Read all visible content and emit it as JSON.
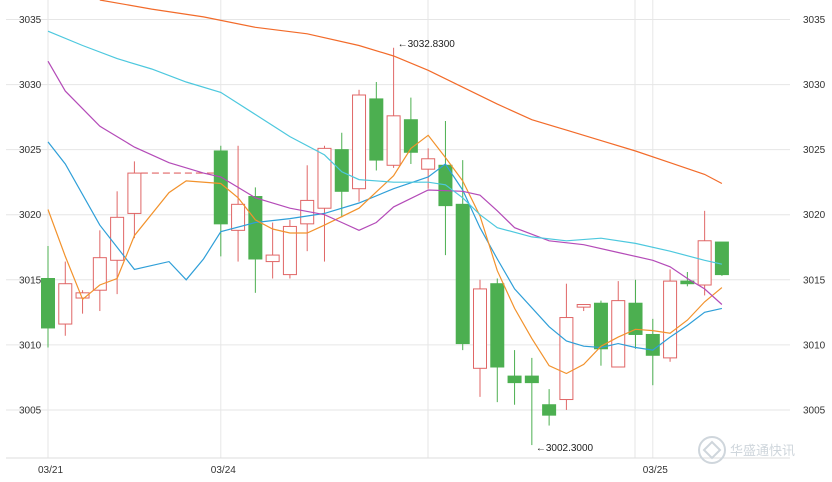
{
  "chart_data": {
    "type": "candlestick",
    "grid": true,
    "colors": {
      "up": "#e06666",
      "down": "#4caf50",
      "ma5": "#2f9fd8",
      "ma10": "#f2922c",
      "ma20": "#b44bb8",
      "ma30": "#4dc8de",
      "ma60": "#f26b2a",
      "grid": "#e6e6e6"
    },
    "y_ticks": [
      3005,
      3010,
      3015,
      3020,
      3025,
      3030,
      3035
    ],
    "y_range": [
      3001,
      3036.5
    ],
    "x_labels": [
      {
        "label": "03/21",
        "index": 0
      },
      {
        "label": "03/24",
        "index": 10
      },
      {
        "label": "03/25",
        "index": 35
      }
    ],
    "candles": [
      {
        "o": 3015.1,
        "h": 3017.6,
        "l": 3009.8,
        "c": 3011.3
      },
      {
        "o": 3011.6,
        "h": 3016.4,
        "l": 3010.7,
        "c": 3014.7
      },
      {
        "o": 3013.6,
        "h": 3014.2,
        "l": 3012.4,
        "c": 3014.0
      },
      {
        "o": 3014.2,
        "h": 3018.8,
        "l": 3012.6,
        "c": 3016.7
      },
      {
        "o": 3016.5,
        "h": 3021.8,
        "l": 3013.9,
        "c": 3019.8
      },
      {
        "o": 3020.1,
        "h": 3024.1,
        "l": 3018.2,
        "c": 3023.2
      },
      {
        "o": 3023.2,
        "h": 3023.2,
        "l": 3023.2,
        "c": 3023.2
      },
      {
        "o": 3023.2,
        "h": 3023.2,
        "l": 3023.2,
        "c": 3023.2
      },
      {
        "o": 3023.2,
        "h": 3023.2,
        "l": 3023.2,
        "c": 3023.2
      },
      {
        "o": 3023.2,
        "h": 3023.2,
        "l": 3023.2,
        "c": 3023.2
      },
      {
        "o": 3024.9,
        "h": 3025.3,
        "l": 3016.8,
        "c": 3019.3
      },
      {
        "o": 3018.8,
        "h": 3025.3,
        "l": 3016.4,
        "c": 3020.8
      },
      {
        "o": 3021.4,
        "h": 3022.1,
        "l": 3014.0,
        "c": 3016.6
      },
      {
        "o": 3016.4,
        "h": 3019.4,
        "l": 3015.1,
        "c": 3016.9
      },
      {
        "o": 3015.4,
        "h": 3019.6,
        "l": 3015.1,
        "c": 3019.1
      },
      {
        "o": 3019.3,
        "h": 3023.8,
        "l": 3017.2,
        "c": 3021.1
      },
      {
        "o": 3020.5,
        "h": 3025.3,
        "l": 3016.4,
        "c": 3025.1
      },
      {
        "o": 3025.0,
        "h": 3026.3,
        "l": 3019.8,
        "c": 3021.8
      },
      {
        "o": 3022.0,
        "h": 3029.6,
        "l": 3021.0,
        "c": 3029.2
      },
      {
        "o": 3028.9,
        "h": 3030.2,
        "l": 3023.4,
        "c": 3024.2
      },
      {
        "o": 3023.8,
        "h": 3032.83,
        "l": 3023.6,
        "c": 3027.6
      },
      {
        "o": 3027.3,
        "h": 3029.0,
        "l": 3023.9,
        "c": 3024.8
      },
      {
        "o": 3023.5,
        "h": 3025.1,
        "l": 3022.0,
        "c": 3024.3
      },
      {
        "o": 3023.8,
        "h": 3027.2,
        "l": 3016.9,
        "c": 3020.7
      },
      {
        "o": 3020.8,
        "h": 3024.2,
        "l": 3009.6,
        "c": 3010.1
      },
      {
        "o": 3008.2,
        "h": 3015.0,
        "l": 3006.0,
        "c": 3014.3
      },
      {
        "o": 3014.7,
        "h": 3015.1,
        "l": 3005.6,
        "c": 3008.3
      },
      {
        "o": 3007.6,
        "h": 3009.6,
        "l": 3005.4,
        "c": 3007.1
      },
      {
        "o": 3007.6,
        "h": 3009.0,
        "l": 3002.3,
        "c": 3007.1
      },
      {
        "o": 3005.4,
        "h": 3006.6,
        "l": 3003.8,
        "c": 3004.6
      },
      {
        "o": 3005.8,
        "h": 3014.7,
        "l": 3005.0,
        "c": 3012.1
      },
      {
        "o": 3012.9,
        "h": 3013.1,
        "l": 3012.6,
        "c": 3013.1
      },
      {
        "o": 3013.2,
        "h": 3013.4,
        "l": 3008.4,
        "c": 3009.7
      },
      {
        "o": 3008.3,
        "h": 3014.9,
        "l": 3008.3,
        "c": 3013.4
      },
      {
        "o": 3013.2,
        "h": 3015.0,
        "l": 3009.7,
        "c": 3010.8
      },
      {
        "o": 3010.8,
        "h": 3012.0,
        "l": 3006.9,
        "c": 3009.2
      },
      {
        "o": 3009.0,
        "h": 3015.8,
        "l": 3008.7,
        "c": 3014.9
      },
      {
        "o": 3014.9,
        "h": 3015.6,
        "l": 3014.5,
        "c": 3014.7
      },
      {
        "o": 3014.6,
        "h": 3020.3,
        "l": 3013.8,
        "c": 3018.0
      },
      {
        "o": 3017.9,
        "h": 3017.9,
        "l": 3015.3,
        "c": 3015.4
      }
    ],
    "dashed_segments": [
      {
        "from": 5,
        "to": 10,
        "y": 3023.2
      }
    ],
    "ma_lines": [
      {
        "key": "ma5",
        "points": [
          [
            0,
            3025.6
          ],
          [
            1,
            3023.9
          ],
          [
            3,
            3019.2
          ],
          [
            5,
            3015.8
          ],
          [
            7,
            3016.4
          ],
          [
            8,
            3015.0
          ],
          [
            9,
            3016.6
          ],
          [
            10,
            3018.7
          ],
          [
            12,
            3019.4
          ],
          [
            14,
            3019.7
          ],
          [
            16,
            3020.1
          ],
          [
            18,
            3020.9
          ],
          [
            20,
            3022.0
          ],
          [
            22,
            3022.9
          ],
          [
            23,
            3023.9
          ],
          [
            24,
            3021.9
          ],
          [
            25,
            3019.0
          ],
          [
            26,
            3016.6
          ],
          [
            27,
            3014.3
          ],
          [
            29,
            3011.4
          ],
          [
            30,
            3010.3
          ],
          [
            31,
            3009.9
          ],
          [
            32,
            3009.8
          ],
          [
            33,
            3010.1
          ],
          [
            34,
            3009.8
          ],
          [
            35,
            3009.6
          ],
          [
            36,
            3010.6
          ],
          [
            37,
            3011.5
          ],
          [
            38,
            3012.5
          ],
          [
            39,
            3012.8
          ]
        ]
      },
      {
        "key": "ma10",
        "points": [
          [
            0,
            3020.4
          ],
          [
            1,
            3016.8
          ],
          [
            2,
            3013.5
          ],
          [
            3,
            3014.6
          ],
          [
            4,
            3015.1
          ],
          [
            5,
            3018.4
          ],
          [
            7,
            3021.7
          ],
          [
            8,
            3022.6
          ],
          [
            10,
            3022.4
          ],
          [
            11,
            3021.3
          ],
          [
            12,
            3019.6
          ],
          [
            13,
            3018.9
          ],
          [
            14,
            3018.6
          ],
          [
            15,
            3018.6
          ],
          [
            16,
            3019.2
          ],
          [
            18,
            3020.5
          ],
          [
            20,
            3023.0
          ],
          [
            21,
            3025.1
          ],
          [
            22,
            3026.1
          ],
          [
            23,
            3024.4
          ],
          [
            24,
            3022.6
          ],
          [
            25,
            3019.9
          ],
          [
            26,
            3015.7
          ],
          [
            27,
            3012.8
          ],
          [
            28,
            3010.5
          ],
          [
            29,
            3008.4
          ],
          [
            30,
            3007.8
          ],
          [
            31,
            3008.5
          ],
          [
            32,
            3009.9
          ],
          [
            33,
            3010.6
          ],
          [
            34,
            3011.2
          ],
          [
            35,
            3011.1
          ],
          [
            36,
            3010.9
          ],
          [
            37,
            3011.9
          ],
          [
            38,
            3013.3
          ],
          [
            39,
            3014.4
          ]
        ]
      },
      {
        "key": "ma20",
        "points": [
          [
            0,
            3031.8
          ],
          [
            1,
            3029.5
          ],
          [
            3,
            3026.8
          ],
          [
            5,
            3025.2
          ],
          [
            7,
            3024.0
          ],
          [
            9,
            3023.2
          ],
          [
            10,
            3022.9
          ],
          [
            11,
            3022.1
          ],
          [
            12,
            3021.3
          ],
          [
            14,
            3020.5
          ],
          [
            16,
            3020.0
          ],
          [
            17,
            3019.4
          ],
          [
            18,
            3018.8
          ],
          [
            19,
            3019.4
          ],
          [
            20,
            3020.6
          ],
          [
            22,
            3021.9
          ],
          [
            24,
            3021.8
          ],
          [
            25,
            3021.5
          ],
          [
            26,
            3020.3
          ],
          [
            27,
            3019.0
          ],
          [
            29,
            3018.0
          ],
          [
            31,
            3017.7
          ],
          [
            33,
            3017.1
          ],
          [
            35,
            3016.5
          ],
          [
            36,
            3016.0
          ],
          [
            37,
            3015.1
          ],
          [
            38,
            3014.3
          ],
          [
            39,
            3013.1
          ]
        ]
      },
      {
        "key": "ma30",
        "points": [
          [
            0,
            3034.1
          ],
          [
            2,
            3033.0
          ],
          [
            4,
            3032.0
          ],
          [
            6,
            3031.2
          ],
          [
            8,
            3030.2
          ],
          [
            10,
            3029.4
          ],
          [
            12,
            3027.7
          ],
          [
            14,
            3026.0
          ],
          [
            16,
            3024.6
          ],
          [
            17,
            3023.3
          ],
          [
            18,
            3022.7
          ],
          [
            20,
            3022.5
          ],
          [
            22,
            3022.5
          ],
          [
            23,
            3022.3
          ],
          [
            24,
            3021.3
          ],
          [
            25,
            3020.0
          ],
          [
            26,
            3019.0
          ],
          [
            28,
            3018.3
          ],
          [
            30,
            3018.0
          ],
          [
            32,
            3018.2
          ],
          [
            34,
            3017.8
          ],
          [
            36,
            3017.2
          ],
          [
            38,
            3016.5
          ],
          [
            39,
            3016.2
          ]
        ]
      },
      {
        "key": "ma60",
        "points": [
          [
            3,
            3036.5
          ],
          [
            6,
            3035.8
          ],
          [
            9,
            3035.2
          ],
          [
            12,
            3034.4
          ],
          [
            15,
            3033.9
          ],
          [
            18,
            3033.0
          ],
          [
            20,
            3032.2
          ],
          [
            22,
            3031.1
          ],
          [
            24,
            3029.8
          ],
          [
            26,
            3028.5
          ],
          [
            28,
            3027.3
          ],
          [
            30,
            3026.5
          ],
          [
            32,
            3025.7
          ],
          [
            34,
            3024.9
          ],
          [
            36,
            3024.0
          ],
          [
            38,
            3023.1
          ],
          [
            39,
            3022.4
          ]
        ]
      }
    ],
    "annotations": [
      {
        "text": "←3032.8300",
        "index": 20,
        "value": 3032.83,
        "side": "top"
      },
      {
        "text": "←3002.3000",
        "index": 28,
        "value": 3002.3,
        "side": "bottom"
      }
    ],
    "watermark": "华盛通快讯"
  }
}
